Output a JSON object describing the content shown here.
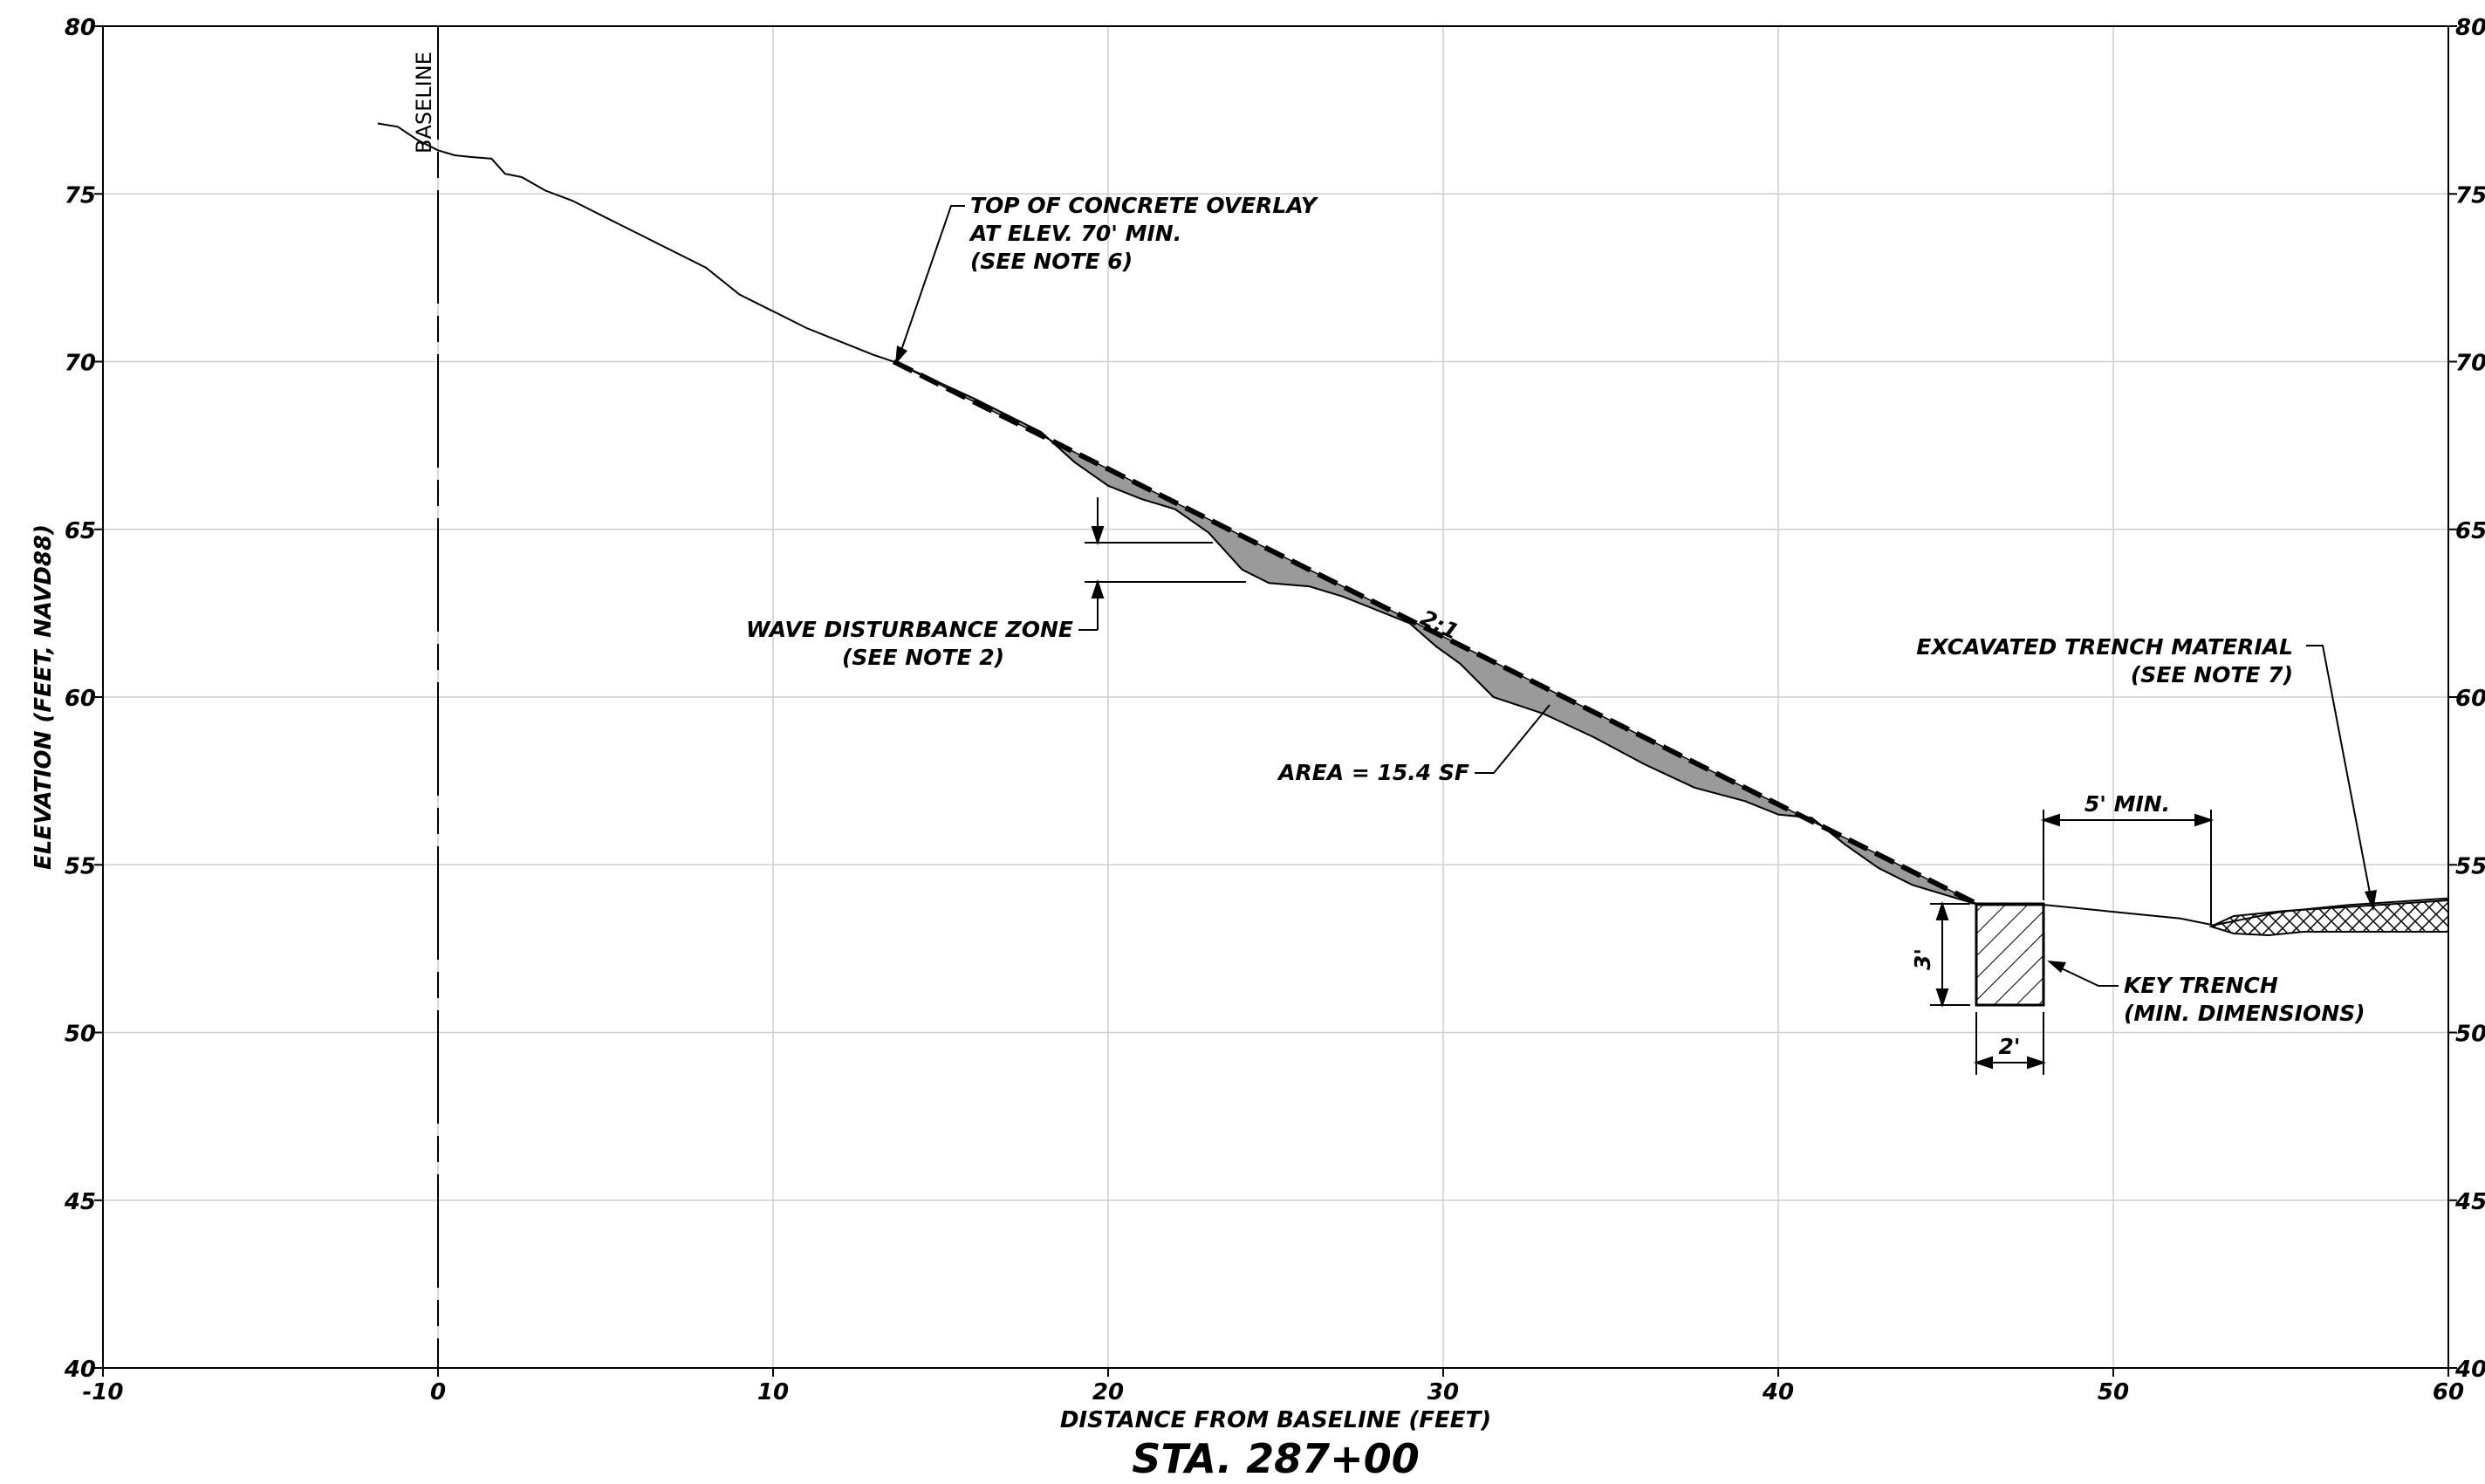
{
  "title": "STA. 287+00",
  "xlabel": "DISTANCE FROM BASELINE (FEET)",
  "ylabel": "ELEVATION (FEET, NAVD88)",
  "x_ticks": [
    "-10",
    "0",
    "10",
    "20",
    "30",
    "40",
    "50",
    "60"
  ],
  "y_ticks": [
    "80",
    "75",
    "70",
    "65",
    "60",
    "55",
    "50",
    "45",
    "40"
  ],
  "baseline_label": "BASELINE",
  "annotations": {
    "overlay": [
      "TOP OF CONCRETE OVERLAY",
      "AT ELEV. 70' MIN.",
      "(SEE NOTE 6)"
    ],
    "wave": [
      "WAVE DISTURBANCE ZONE",
      "(SEE NOTE 2)"
    ],
    "slope": "2:1",
    "area": "AREA = 15.4 SF",
    "excavated": [
      "EXCAVATED TRENCH MATERIAL",
      "(SEE NOTE 7)"
    ],
    "min5": "5' MIN.",
    "key": [
      "KEY TRENCH",
      "(MIN. DIMENSIONS)"
    ],
    "dim3": "3'",
    "dim2": "2'"
  },
  "chart_data": {
    "type": "line",
    "xlim": [
      -10,
      60
    ],
    "ylim": [
      40,
      80
    ],
    "grid": true,
    "series": [
      {
        "name": "",
        "x": [
          -1.8,
          -1.2,
          -0.6,
          0,
          0.5,
          1.0,
          1.6,
          2.0,
          2.5,
          3.2,
          4.0,
          5.0,
          6.0,
          7.0,
          8.0,
          9.0,
          10.0,
          11.0,
          12.0,
          13.0,
          13.6,
          16.0,
          18.0,
          19.0,
          20.0,
          21.0,
          22.0,
          23.0,
          24.0,
          24.8,
          26.0,
          27.0,
          28.0,
          29.0,
          29.8,
          30.5,
          31.5,
          33.0,
          34.5,
          36.0,
          37.5,
          39.0,
          40.0,
          41.0,
          42.0,
          43.0,
          44.0,
          45.0,
          46.0,
          48.0,
          50.0,
          52.0,
          53.0,
          54.0,
          55.0,
          57.0,
          60.0
        ],
        "y": [
          77.1,
          77.0,
          76.6,
          76.3,
          76.15,
          76.1,
          76.05,
          75.6,
          75.5,
          75.1,
          74.8,
          74.3,
          73.8,
          73.3,
          72.8,
          72.0,
          71.5,
          71.0,
          70.6,
          70.2,
          70.0,
          68.9,
          67.9,
          67.0,
          66.3,
          65.9,
          65.6,
          64.9,
          63.8,
          63.4,
          63.3,
          63.0,
          62.6,
          62.2,
          61.5,
          61.0,
          60.0,
          59.5,
          58.8,
          58.0,
          57.3,
          56.9,
          56.5,
          56.4,
          55.6,
          54.9,
          54.4,
          54.1,
          53.8,
          53.8,
          53.6,
          53.4,
          53.2,
          53.4,
          53.6,
          53.8,
          54.0
        ]
      },
      {
        "name": "",
        "x": [
          13.6,
          45.9
        ],
        "y": [
          70.0,
          53.85
        ]
      }
    ],
    "annotations": [
      "TOP OF CONCRETE OVERLAY AT ELEV. 70' MIN. (SEE NOTE 6)",
      "WAVE DISTURBANCE ZONE (SEE NOTE 2)",
      "2:1",
      "AREA = 15.4 SF",
      "EXCAVATED TRENCH MATERIAL (SEE NOTE 7)",
      "5' MIN.",
      "KEY TRENCH (MIN. DIMENSIONS)",
      "3'",
      "2'"
    ]
  }
}
